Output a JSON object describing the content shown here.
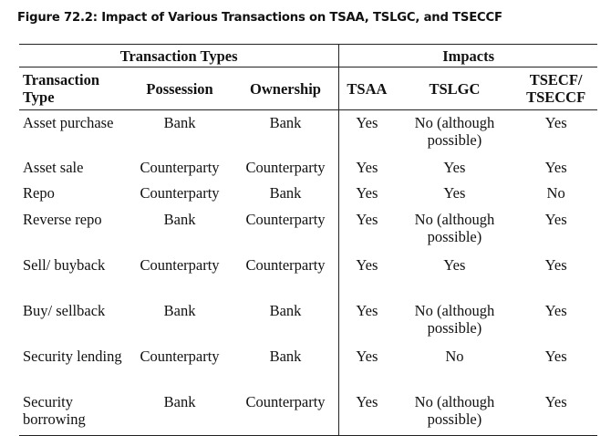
{
  "caption": "Figure 72.2: Impact of Various Transactions on TSAA, TSLGC, and TSECCF",
  "groups": {
    "transaction_types": "Transaction Types",
    "impacts": "Impacts"
  },
  "columns": {
    "transaction_type": "Transaction Type",
    "possession": "Possession",
    "ownership": "Ownership",
    "tsaa": "TSAA",
    "tslgc": "TSLGC",
    "tsecf": "TSECF/ TSECCF"
  },
  "rows": [
    {
      "type": "Asset purchase",
      "possession": "Bank",
      "ownership": "Bank",
      "tsaa": "Yes",
      "tslgc": "No (although possible)",
      "tsecf": "Yes"
    },
    {
      "type": "Asset sale",
      "possession": "Counterparty",
      "ownership": "Counterparty",
      "tsaa": "Yes",
      "tslgc": "Yes",
      "tsecf": "Yes"
    },
    {
      "type": "Repo",
      "possession": "Counterparty",
      "ownership": "Bank",
      "tsaa": "Yes",
      "tslgc": "Yes",
      "tsecf": "No"
    },
    {
      "type": "Reverse repo",
      "possession": "Bank",
      "ownership": "Counterparty",
      "tsaa": "Yes",
      "tslgc": "No (although possible)",
      "tsecf": "Yes"
    },
    {
      "type": "Sell/ buyback",
      "possession": "Counterparty",
      "ownership": "Counterparty",
      "tsaa": "Yes",
      "tslgc": "Yes",
      "tsecf": "Yes"
    },
    {
      "type": "Buy/ sellback",
      "possession": "Bank",
      "ownership": "Bank",
      "tsaa": "Yes",
      "tslgc": "No (although possible)",
      "tsecf": "Yes"
    },
    {
      "type": "Security lending",
      "possession": "Counterparty",
      "ownership": "Bank",
      "tsaa": "Yes",
      "tslgc": "No",
      "tsecf": "Yes"
    },
    {
      "type": "Security borrowing",
      "possession": "Bank",
      "ownership": "Counterparty",
      "tsaa": "Yes",
      "tslgc": "No (although possible)",
      "tsecf": "Yes"
    }
  ]
}
